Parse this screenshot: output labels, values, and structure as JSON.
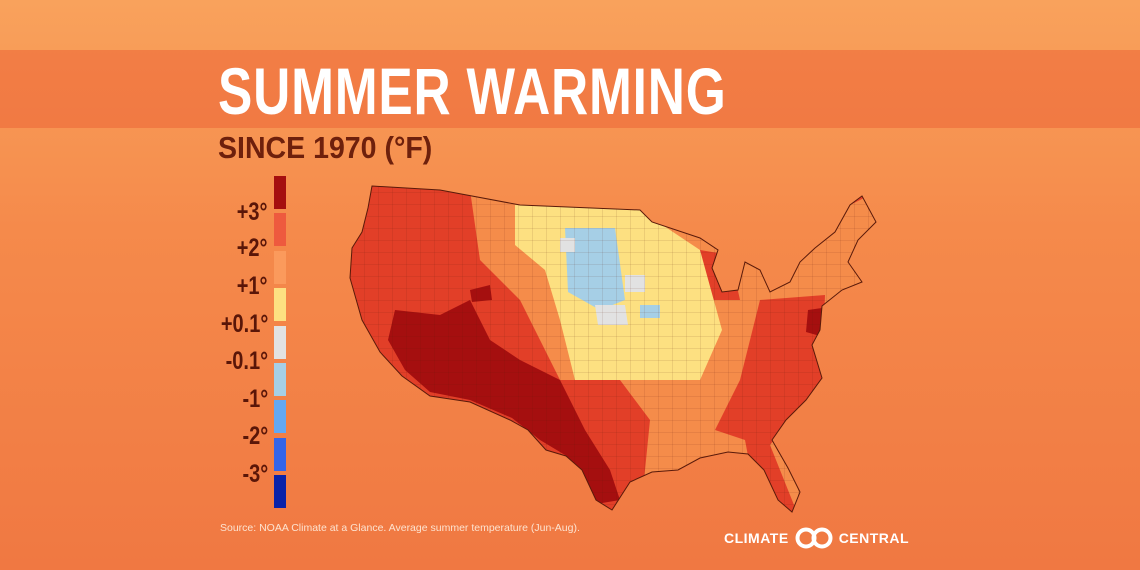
{
  "title": "SUMMER WARMING",
  "subtitle": "SINCE 1970 (°F)",
  "legend": [
    {
      "label": "+3°",
      "color": "#a50f0f"
    },
    {
      "label": "+2°",
      "color": "#ee5a3e"
    },
    {
      "label": "+1°",
      "color": "#fb9a5c"
    },
    {
      "label": "+0.1°",
      "color": "#fde081"
    },
    {
      "label": "-0.1°",
      "color": "#e2e2e2"
    },
    {
      "label": "-1°",
      "color": "#a6cfe6"
    },
    {
      "label": "-2°",
      "color": "#62a8f4"
    },
    {
      "label": "-3°",
      "color": "#3565e8"
    },
    {
      "label": "",
      "color": "#0a22a8"
    }
  ],
  "source": "Source: NOAA Climate at a Glance. Average summer temperature (Jun-Aug).",
  "logo": {
    "left": "CLIMATE",
    "right": "CENTRAL"
  }
}
